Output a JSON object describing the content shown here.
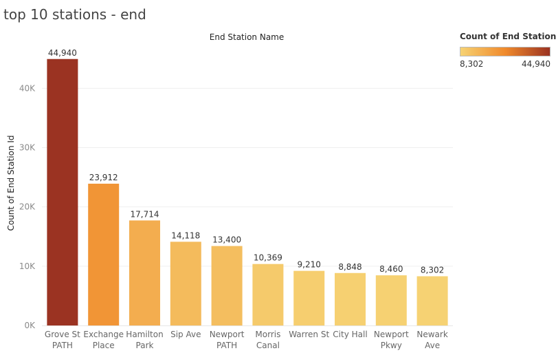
{
  "page": {
    "title": "top 10 stations - end"
  },
  "legend": {
    "title": "Count of End Station Id",
    "min_label": "8,302",
    "max_label": "44,940",
    "colors": [
      "#f6d273",
      "#f08a2c",
      "#9b3322"
    ]
  },
  "chart_data": {
    "type": "bar",
    "title": "End Station Name",
    "xlabel": "End Station Name",
    "ylabel": "Count of End Station Id",
    "categories": [
      [
        "Grove St",
        "PATH"
      ],
      [
        "Exchange",
        "Place"
      ],
      [
        "Hamilton",
        "Park"
      ],
      [
        "Sip Ave"
      ],
      [
        "Newport",
        "PATH"
      ],
      [
        "Morris",
        "Canal"
      ],
      [
        "Warren St"
      ],
      [
        "City Hall"
      ],
      [
        "Newport",
        "Pkwy"
      ],
      [
        "Newark",
        "Ave"
      ]
    ],
    "values": [
      44940,
      23912,
      17714,
      14118,
      13400,
      10369,
      9210,
      8848,
      8460,
      8302
    ],
    "value_labels": [
      "44,940",
      "23,912",
      "17,714",
      "14,118",
      "13,400",
      "10,369",
      "9,210",
      "8,848",
      "8,460",
      "8,302"
    ],
    "yticks": [
      0,
      10000,
      20000,
      30000,
      40000
    ],
    "ytick_labels": [
      "0K",
      "10K",
      "20K",
      "30K",
      "40K"
    ],
    "ylim": [
      0,
      47000
    ],
    "grid": true,
    "legend_position": "top-right"
  }
}
